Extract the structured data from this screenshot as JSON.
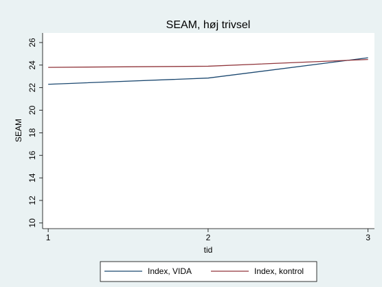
{
  "chart_data": {
    "type": "line",
    "title": "SEAM, høj trivsel",
    "x": [
      1,
      2,
      3
    ],
    "series": [
      {
        "name": "Index, VIDA",
        "color": "#1a476f",
        "values": [
          22.3,
          22.85,
          24.65
        ]
      },
      {
        "name": "Index, kontrol",
        "color": "#90353b",
        "values": [
          23.8,
          23.9,
          24.5
        ]
      }
    ],
    "xlabel": "tid",
    "ylabel": "SEAM",
    "xlim": [
      0.965,
      3.04
    ],
    "xticks": [
      1,
      2,
      3
    ],
    "ylim": [
      9.5,
      26.85
    ],
    "yticks": [
      10,
      12,
      14,
      16,
      18,
      20,
      22,
      24,
      26
    ],
    "grid": false,
    "legend": "bottom"
  }
}
